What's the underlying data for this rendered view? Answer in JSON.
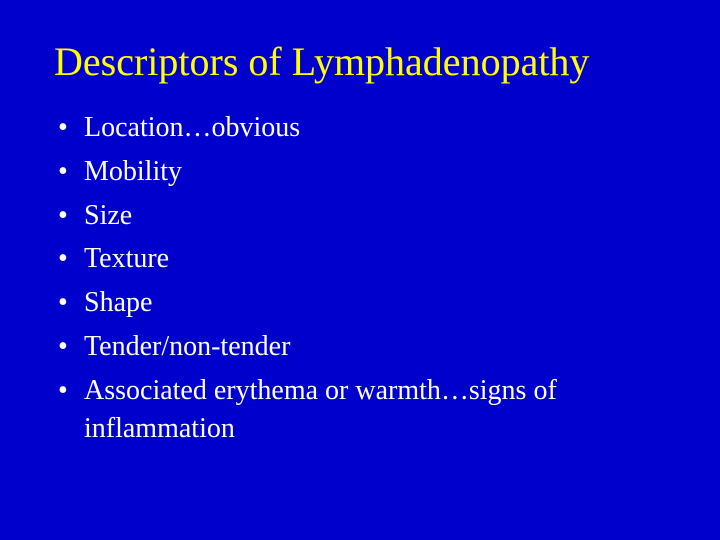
{
  "slide": {
    "background_color": "#0000cc",
    "title": {
      "text": "Descriptors of Lymphadenopathy",
      "color": "#ffff00",
      "fontsize": 40
    },
    "bullets": {
      "items": [
        "Location…obvious",
        "Mobility",
        "Size",
        "Texture",
        "Shape",
        "Tender/non-tender",
        "Associated erythema or warmth…signs of inflammation"
      ],
      "color": "#ffffff",
      "fontsize": 28
    }
  }
}
